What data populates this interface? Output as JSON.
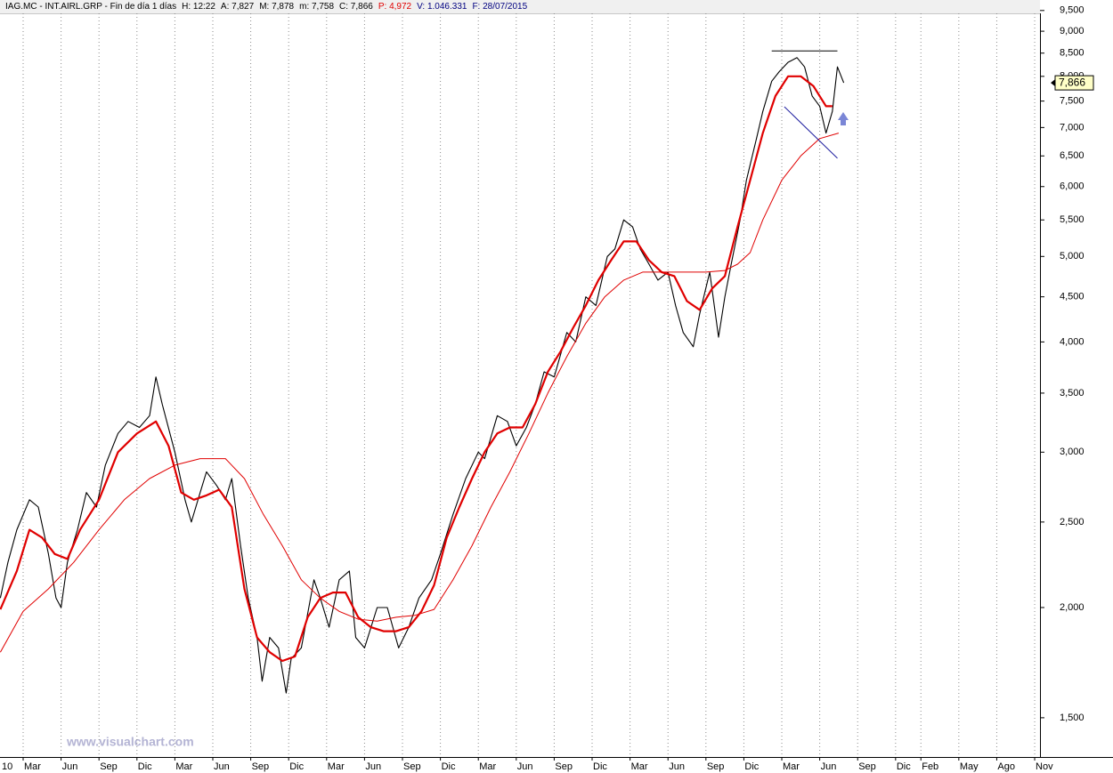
{
  "header": [
    {
      "text": "IAG.MC - INT.AIRL.GRP - Fin de día 1 días",
      "color": "#000000"
    },
    {
      "text": "H: 12:22",
      "color": "#000000"
    },
    {
      "text": "A: 7,827",
      "color": "#000000"
    },
    {
      "text": "M: 7,878",
      "color": "#000000"
    },
    {
      "text": "m: 7,758",
      "color": "#000000"
    },
    {
      "text": "C: 7,866",
      "color": "#000000"
    },
    {
      "text": "P: 4,972",
      "color": "#e00000"
    },
    {
      "text": "V: 1.046.331",
      "color": "#000080"
    },
    {
      "text": "F: 28/07/2015",
      "color": "#000080"
    }
  ],
  "chart_data": {
    "type": "line",
    "watermark": "www.visualchart.com",
    "log_y": true,
    "x_grid": true,
    "xlim": [
      0.17,
      82.42
    ],
    "ylim": [
      1354,
      9430
    ],
    "xticks": [
      {
        "value": 0,
        "label": "10"
      },
      {
        "value": 2,
        "label": "Mar"
      },
      {
        "value": 5,
        "label": "Jun"
      },
      {
        "value": 8,
        "label": "Sep"
      },
      {
        "value": 11,
        "label": "Dic"
      },
      {
        "value": 14,
        "label": "Mar"
      },
      {
        "value": 17,
        "label": "Jun"
      },
      {
        "value": 20,
        "label": "Sep"
      },
      {
        "value": 23,
        "label": "Dic"
      },
      {
        "value": 26,
        "label": "Mar"
      },
      {
        "value": 29,
        "label": "Jun"
      },
      {
        "value": 32,
        "label": "Sep"
      },
      {
        "value": 35,
        "label": "Dic"
      },
      {
        "value": 38,
        "label": "Mar"
      },
      {
        "value": 41,
        "label": "Jun"
      },
      {
        "value": 44,
        "label": "Sep"
      },
      {
        "value": 47,
        "label": "Dic"
      },
      {
        "value": 50,
        "label": "Mar"
      },
      {
        "value": 53,
        "label": "Jun"
      },
      {
        "value": 56,
        "label": "Sep"
      },
      {
        "value": 59,
        "label": "Dic"
      },
      {
        "value": 62,
        "label": "Mar"
      },
      {
        "value": 65,
        "label": "Jun"
      },
      {
        "value": 68,
        "label": "Sep"
      },
      {
        "value": 71,
        "label": "Dic"
      },
      {
        "value": 73,
        "label": "Feb"
      },
      {
        "value": 76,
        "label": "May"
      },
      {
        "value": 79,
        "label": "Ago"
      },
      {
        "value": 82,
        "label": "Nov"
      }
    ],
    "yticks": [
      {
        "value": 1500,
        "label": "1,500"
      },
      {
        "value": 2000,
        "label": "2,000"
      },
      {
        "value": 2500,
        "label": "2,500"
      },
      {
        "value": 3000,
        "label": "3,000"
      },
      {
        "value": 3500,
        "label": "3,500"
      },
      {
        "value": 4000,
        "label": "4,000"
      },
      {
        "value": 4500,
        "label": "4,500"
      },
      {
        "value": 5000,
        "label": "5,000"
      },
      {
        "value": 5500,
        "label": "5,500"
      },
      {
        "value": 6000,
        "label": "6,000"
      },
      {
        "value": 6500,
        "label": "6,500"
      },
      {
        "value": 7000,
        "label": "7,000"
      },
      {
        "value": 7500,
        "label": "7,500"
      },
      {
        "value": 8000,
        "label": "8,000"
      },
      {
        "value": 8500,
        "label": "8,500"
      },
      {
        "value": 9000,
        "label": "9,000"
      },
      {
        "value": 9500,
        "label": "9,500"
      }
    ],
    "price_tag": {
      "value": 7866,
      "label": "7,866"
    },
    "series": [
      {
        "color": "#000000",
        "width": 1.1,
        "x": [
          0.2,
          0.8,
          1.5,
          2.5,
          3.2,
          4.0,
          4.6,
          5.0,
          5.5,
          6.3,
          7.0,
          7.8,
          8.5,
          9.5,
          10.3,
          11.2,
          12.0,
          12.5,
          13.0,
          14.0,
          14.8,
          15.3,
          16.0,
          16.5,
          17.3,
          18.0,
          18.5,
          19.2,
          19.8,
          20.5,
          20.9,
          21.5,
          22.2,
          22.8,
          23.2,
          24.0,
          25.0,
          25.5,
          26.2,
          27.0,
          27.8,
          28.3,
          29.0,
          30.0,
          30.8,
          31.7,
          32.5,
          33.3,
          34.3,
          35.0,
          36.0,
          37.0,
          38.0,
          38.5,
          39.5,
          40.3,
          41.0,
          41.8,
          42.5,
          43.2,
          44.0,
          45.0,
          45.7,
          46.5,
          47.3,
          48.2,
          48.8,
          49.5,
          50.2,
          50.8,
          51.5,
          52.2,
          53.0,
          53.6,
          54.2,
          55.0,
          55.5,
          56.3,
          57.0,
          57.5,
          58.0,
          58.7,
          59.2,
          60.0,
          60.5,
          61.2,
          61.8,
          62.5,
          63.2,
          63.8,
          64.4,
          65.0,
          65.5,
          66.0,
          66.4,
          66.9
        ],
        "values": [
          2050,
          2250,
          2450,
          2650,
          2600,
          2300,
          2050,
          2000,
          2250,
          2450,
          2700,
          2600,
          2900,
          3150,
          3250,
          3200,
          3300,
          3650,
          3400,
          3000,
          2650,
          2500,
          2700,
          2850,
          2750,
          2650,
          2800,
          2350,
          2050,
          1850,
          1650,
          1850,
          1800,
          1600,
          1750,
          1800,
          2150,
          2050,
          1900,
          2150,
          2200,
          1850,
          1800,
          2000,
          2000,
          1800,
          1900,
          2050,
          2150,
          2300,
          2550,
          2800,
          3000,
          2950,
          3300,
          3250,
          3050,
          3200,
          3400,
          3700,
          3650,
          4100,
          4000,
          4500,
          4400,
          5000,
          5100,
          5500,
          5400,
          5100,
          4900,
          4700,
          4800,
          4400,
          4100,
          3950,
          4300,
          4800,
          4050,
          4500,
          4900,
          5500,
          6100,
          6800,
          7300,
          7900,
          8100,
          8300,
          8400,
          8200,
          7600,
          7400,
          6900,
          7300,
          8200,
          7866
        ]
      },
      {
        "color": "#e00000",
        "width": 2.2,
        "x": [
          0.2,
          1.5,
          2.5,
          3.5,
          4.5,
          5.5,
          6.5,
          8,
          9.5,
          11,
          12.5,
          13.5,
          14.5,
          15.5,
          16.5,
          17.5,
          18.5,
          19.5,
          20.5,
          21.5,
          22.5,
          23.5,
          24.5,
          25.5,
          26.5,
          27.5,
          28.5,
          29.5,
          30.5,
          31.5,
          32.5,
          33.5,
          34.5,
          35.5,
          36.5,
          37.5,
          38.5,
          39.5,
          40.5,
          41.5,
          42.5,
          43.5,
          44.5,
          45.5,
          46.5,
          47.5,
          48.5,
          49.5,
          50.5,
          51.5,
          52.5,
          53.5,
          54.5,
          55.5,
          56.5,
          57.5,
          58.5,
          59.5,
          60.5,
          61.5,
          62.5,
          63.5,
          64.5,
          65.5,
          66.0
        ],
        "values": [
          1990,
          2200,
          2450,
          2400,
          2300,
          2270,
          2450,
          2650,
          3000,
          3150,
          3250,
          3050,
          2700,
          2650,
          2680,
          2720,
          2600,
          2100,
          1850,
          1780,
          1740,
          1760,
          1950,
          2050,
          2080,
          2080,
          1950,
          1900,
          1880,
          1880,
          1900,
          1980,
          2120,
          2400,
          2600,
          2800,
          3000,
          3150,
          3200,
          3200,
          3400,
          3700,
          3900,
          4150,
          4400,
          4700,
          4950,
          5200,
          5200,
          4950,
          4800,
          4750,
          4450,
          4350,
          4600,
          4750,
          5400,
          6100,
          6900,
          7600,
          8000,
          8000,
          7800,
          7400,
          7400
        ]
      },
      {
        "color": "#e00000",
        "width": 1,
        "x": [
          0.2,
          2,
          4,
          6,
          8,
          10,
          12,
          14,
          16,
          18,
          19.5,
          21,
          22.5,
          24,
          25.5,
          27,
          28.5,
          30,
          31.5,
          33,
          34.5,
          36,
          37.5,
          39,
          40.5,
          42,
          43.5,
          45,
          46.5,
          48,
          49.5,
          51,
          52.5,
          54,
          56,
          57.5,
          58.5,
          59.5,
          60.5,
          62,
          63.5,
          65,
          66.5
        ],
        "values": [
          1780,
          1980,
          2100,
          2250,
          2450,
          2650,
          2800,
          2900,
          2950,
          2950,
          2800,
          2550,
          2350,
          2150,
          2050,
          1980,
          1940,
          1930,
          1950,
          1960,
          1990,
          2150,
          2350,
          2600,
          2850,
          3150,
          3500,
          3850,
          4200,
          4500,
          4700,
          4800,
          4800,
          4800,
          4800,
          4820,
          4900,
          5050,
          5500,
          6100,
          6500,
          6800,
          6900
        ]
      }
    ],
    "trendlines": [
      {
        "color": "#000000",
        "x": [
          61.2,
          66.4
        ],
        "values": [
          8550,
          8550
        ]
      },
      {
        "color": "#2020a0",
        "x": [
          62.2,
          66.4
        ],
        "values": [
          7390,
          6460
        ]
      }
    ]
  }
}
